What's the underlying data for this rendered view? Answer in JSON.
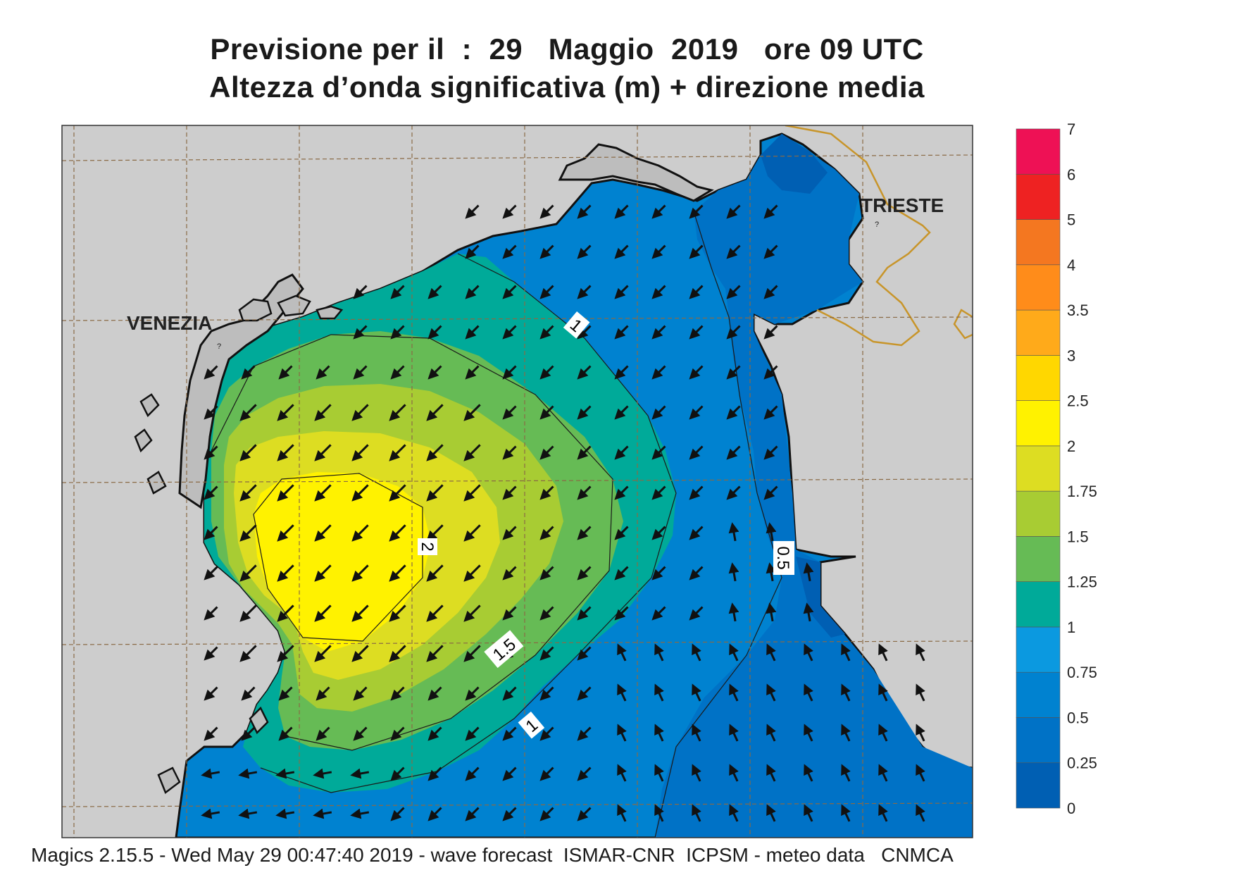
{
  "title": {
    "line1": "Previsione per il  :  29   Maggio  2019   ore 09 UTC",
    "line2": "Altezza d’onda significativa (m) + direzione media"
  },
  "places": {
    "venezia": "VENEZIA",
    "trieste": "TRIESTE",
    "city_marker": "?"
  },
  "contour_labels": [
    "1",
    "2",
    "1.5",
    "1",
    "0.5"
  ],
  "colorbar": {
    "labels": [
      "7",
      "6",
      "5",
      "4",
      "3.5",
      "3",
      "2.5",
      "2",
      "1.75",
      "1.5",
      "1.25",
      "1",
      "0.75",
      "0.5",
      "0.25",
      "0"
    ],
    "colors": [
      "#005fb3",
      "#0072c6",
      "#0082d0",
      "#0b99e0",
      "#00aa99",
      "#66bb55",
      "#a8cc33",
      "#dddd22",
      "#fff200",
      "#ffd700",
      "#ffaa1a",
      "#ff8c1a",
      "#f47720",
      "#ee2222",
      "#ee1155"
    ]
  },
  "footer": "Magics 2.15.5 - Wed May 29 00:47:40 2019 - wave forecast  ISMAR-CNR  ICPSM - meteo data   CNMCA"
}
